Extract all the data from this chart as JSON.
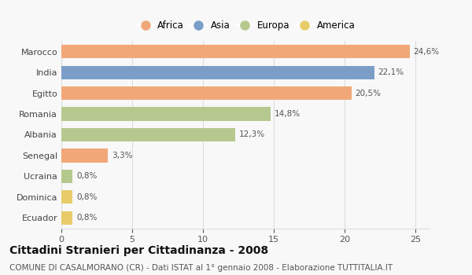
{
  "categories": [
    "Marocco",
    "India",
    "Egitto",
    "Romania",
    "Albania",
    "Senegal",
    "Ucraina",
    "Dominica",
    "Ecuador"
  ],
  "values": [
    24.6,
    22.1,
    20.5,
    14.8,
    12.3,
    3.3,
    0.8,
    0.8,
    0.8
  ],
  "labels": [
    "24,6%",
    "22,1%",
    "20,5%",
    "14,8%",
    "12,3%",
    "3,3%",
    "0,8%",
    "0,8%",
    "0,8%"
  ],
  "colors": [
    "#f0a878",
    "#7b9ec8",
    "#f0a878",
    "#b5c98e",
    "#b5c98e",
    "#f0a878",
    "#b5c98e",
    "#e8cc6a",
    "#e8cc6a"
  ],
  "legend_labels": [
    "Africa",
    "Asia",
    "Europa",
    "America"
  ],
  "legend_colors": [
    "#f0a878",
    "#7b9ec8",
    "#b5c98e",
    "#e8cc6a"
  ],
  "xlim": [
    0,
    26
  ],
  "xticks": [
    0,
    5,
    10,
    15,
    20,
    25
  ],
  "title": "Cittadini Stranieri per Cittadinanza - 2008",
  "subtitle": "COMUNE DI CASALMORANO (CR) - Dati ISTAT al 1° gennaio 2008 - Elaborazione TUTTITALIA.IT",
  "title_fontsize": 10,
  "subtitle_fontsize": 7.5,
  "bg_color": "#f8f8f8",
  "bar_height": 0.65,
  "grid_color": "#dddddd",
  "label_fontsize": 7.5,
  "ytick_fontsize": 8,
  "xtick_fontsize": 8
}
